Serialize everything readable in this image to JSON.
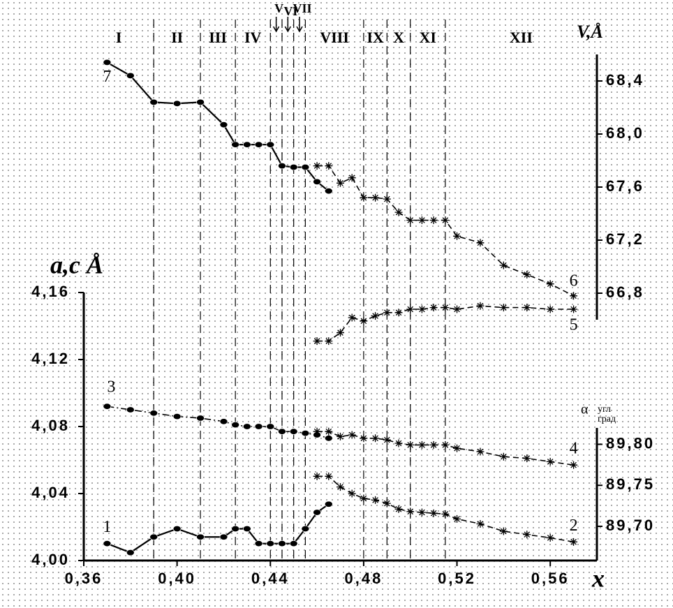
{
  "chart_data": {
    "type": "line",
    "x_label": "x",
    "y_label": "a,c Å",
    "y2_label": {
      "symbol": "α",
      "top": "угл",
      "bottom": "град"
    },
    "y3_label": "V,Å",
    "xlim": [
      0.36,
      0.58
    ],
    "xticks": [
      {
        "value": 0.36,
        "label": "0,36"
      },
      {
        "value": 0.4,
        "label": "0,40"
      },
      {
        "value": 0.44,
        "label": "0,44"
      },
      {
        "value": 0.48,
        "label": "0,48"
      },
      {
        "value": 0.52,
        "label": "0,52"
      },
      {
        "value": 0.56,
        "label": "0,56"
      }
    ],
    "ylim": [
      4.0,
      4.16
    ],
    "yticks": [
      {
        "value": 4.0,
        "label": "4,00"
      },
      {
        "value": 4.04,
        "label": "4,04"
      },
      {
        "value": 4.08,
        "label": "4,08"
      },
      {
        "value": 4.12,
        "label": "4,12"
      },
      {
        "value": 4.16,
        "label": "4,16"
      }
    ],
    "y2lim": [
      89.66,
      89.82
    ],
    "y2ticks": [
      {
        "value": 89.7,
        "label": "89,70"
      },
      {
        "value": 89.75,
        "label": "89,75"
      },
      {
        "value": 89.8,
        "label": "89,80"
      }
    ],
    "y3lim": [
      66.6,
      68.6
    ],
    "y3ticks": [
      {
        "value": 66.8,
        "label": "66,8"
      },
      {
        "value": 67.2,
        "label": "67,2"
      },
      {
        "value": 67.6,
        "label": "67,6"
      },
      {
        "value": 68.0,
        "label": "68,0"
      },
      {
        "value": 68.4,
        "label": "68,4"
      }
    ],
    "boundaries": [
      0.39,
      0.41,
      0.425,
      0.44,
      0.445,
      0.45,
      0.455,
      0.48,
      0.49,
      0.5,
      0.515
    ],
    "regions": [
      "I",
      "II",
      "III",
      "IV",
      "V",
      "VI",
      "VII",
      "VIII",
      "IX",
      "X",
      "XI",
      "XII"
    ],
    "series": [
      {
        "name": "1",
        "axis": "y2",
        "marker": "circle",
        "line_style": "solid",
        "color": "#000000",
        "x": [
          0.37,
          0.38,
          0.39,
          0.4,
          0.41,
          0.42,
          0.425,
          0.43,
          0.435,
          0.44,
          0.445,
          0.45,
          0.455,
          0.46,
          0.465
        ],
        "values": [
          89.679,
          89.668,
          89.687,
          89.697,
          89.687,
          89.687,
          89.697,
          89.697,
          89.679,
          89.679,
          89.679,
          89.679,
          89.697,
          89.717,
          89.727
        ]
      },
      {
        "name": "2",
        "axis": "y2",
        "marker": "star",
        "line_style": "dashed",
        "color": "#000000",
        "x": [
          0.46,
          0.465,
          0.47,
          0.475,
          0.48,
          0.485,
          0.49,
          0.495,
          0.5,
          0.505,
          0.51,
          0.515,
          0.52,
          0.53,
          0.54,
          0.55,
          0.56,
          0.57
        ],
        "values": [
          89.761,
          89.761,
          89.748,
          89.74,
          89.734,
          89.732,
          89.728,
          89.721,
          89.718,
          89.717,
          89.716,
          89.715,
          89.709,
          89.703,
          89.694,
          89.69,
          89.686,
          89.681
        ]
      },
      {
        "name": "3",
        "axis": "y",
        "marker": "circle",
        "line_style": "dashdot",
        "color": "#000000",
        "x": [
          0.37,
          0.38,
          0.39,
          0.4,
          0.41,
          0.42,
          0.425,
          0.43,
          0.435,
          0.44,
          0.445,
          0.45,
          0.455,
          0.46,
          0.465
        ],
        "values": [
          4.092,
          4.09,
          4.088,
          4.086,
          4.085,
          4.083,
          4.081,
          4.08,
          4.08,
          4.08,
          4.077,
          4.077,
          4.076,
          4.075,
          4.073
        ]
      },
      {
        "name": "4",
        "axis": "y",
        "marker": "star",
        "line_style": "dashed",
        "color": "#000000",
        "x": [
          0.46,
          0.465,
          0.47,
          0.475,
          0.48,
          0.485,
          0.49,
          0.495,
          0.5,
          0.505,
          0.51,
          0.515,
          0.52,
          0.53,
          0.54,
          0.55,
          0.56,
          0.57
        ],
        "values": [
          4.077,
          4.077,
          4.074,
          4.075,
          4.073,
          4.073,
          4.072,
          4.07,
          4.069,
          4.069,
          4.069,
          4.069,
          4.067,
          4.065,
          4.062,
          4.061,
          4.059,
          4.057
        ]
      },
      {
        "name": "5",
        "axis": "y",
        "marker": "star",
        "line_style": "dashed",
        "color": "#000000",
        "x": [
          0.46,
          0.465,
          0.47,
          0.475,
          0.48,
          0.485,
          0.49,
          0.495,
          0.5,
          0.505,
          0.51,
          0.515,
          0.52,
          0.53,
          0.54,
          0.55,
          0.56,
          0.57
        ],
        "values": [
          4.131,
          4.131,
          4.136,
          4.145,
          4.143,
          4.146,
          4.148,
          4.148,
          4.15,
          4.15,
          4.151,
          4.151,
          4.15,
          4.152,
          4.151,
          4.151,
          4.15,
          4.15
        ]
      },
      {
        "name": "6",
        "axis": "y3",
        "marker": "star",
        "line_style": "dashed",
        "color": "#000000",
        "x": [
          0.46,
          0.465,
          0.47,
          0.475,
          0.48,
          0.485,
          0.49,
          0.495,
          0.5,
          0.505,
          0.51,
          0.515,
          0.52,
          0.53,
          0.54,
          0.55,
          0.56,
          0.57
        ],
        "values": [
          67.76,
          67.76,
          67.63,
          67.67,
          67.52,
          67.52,
          67.51,
          67.41,
          67.35,
          67.35,
          67.35,
          67.35,
          67.23,
          67.18,
          67.01,
          66.94,
          66.87,
          66.78
        ]
      },
      {
        "name": "7",
        "axis": "y3",
        "marker": "circle",
        "line_style": "solid",
        "color": "#000000",
        "x": [
          0.37,
          0.38,
          0.39,
          0.4,
          0.41,
          0.42,
          0.425,
          0.43,
          0.435,
          0.44,
          0.445,
          0.45,
          0.455,
          0.46,
          0.465
        ],
        "values": [
          68.54,
          68.44,
          68.24,
          68.23,
          68.24,
          68.07,
          67.92,
          67.92,
          67.92,
          67.92,
          67.76,
          67.75,
          67.75,
          67.64,
          67.57
        ]
      }
    ]
  }
}
